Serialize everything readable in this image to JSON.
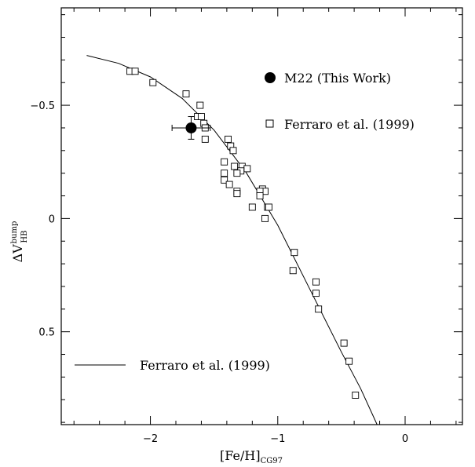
{
  "chart_data": {
    "type": "scatter",
    "xlabel": {
      "main": "[Fe/H]",
      "sub": "CG97"
    },
    "ylabel": {
      "main": "ΔV",
      "sup": "bump",
      "sub": "HB"
    },
    "xlim": [
      -2.7,
      0.45
    ],
    "ylim": [
      0.91,
      -0.93
    ],
    "y_inverted": true,
    "x_ticks": [
      -2,
      -1,
      0
    ],
    "x_tick_labels": [
      "−2",
      "−1",
      "0"
    ],
    "y_ticks": [
      -0.5,
      0,
      0.5
    ],
    "y_tick_labels": [
      "−0.5",
      "0",
      "0.5"
    ],
    "grid": false,
    "legend_placement": "top-right and bottom-left",
    "series": [
      {
        "name": "Ferraro et al. (1999)",
        "kind": "open-square",
        "points": [
          {
            "x": -2.16,
            "y": -0.65
          },
          {
            "x": -2.12,
            "y": -0.65
          },
          {
            "x": -1.98,
            "y": -0.6
          },
          {
            "x": -1.72,
            "y": -0.55
          },
          {
            "x": -1.61,
            "y": -0.5
          },
          {
            "x": -1.63,
            "y": -0.45
          },
          {
            "x": -1.6,
            "y": -0.45
          },
          {
            "x": -1.58,
            "y": -0.42
          },
          {
            "x": -1.57,
            "y": -0.4
          },
          {
            "x": -1.57,
            "y": -0.35
          },
          {
            "x": -1.39,
            "y": -0.35
          },
          {
            "x": -1.37,
            "y": -0.32
          },
          {
            "x": -1.35,
            "y": -0.3
          },
          {
            "x": -1.42,
            "y": -0.25
          },
          {
            "x": -1.34,
            "y": -0.23
          },
          {
            "x": -1.28,
            "y": -0.23
          },
          {
            "x": -1.24,
            "y": -0.22
          },
          {
            "x": -1.29,
            "y": -0.21
          },
          {
            "x": -1.32,
            "y": -0.2
          },
          {
            "x": -1.42,
            "y": -0.2
          },
          {
            "x": -1.42,
            "y": -0.17
          },
          {
            "x": -1.38,
            "y": -0.15
          },
          {
            "x": -1.32,
            "y": -0.12
          },
          {
            "x": -1.32,
            "y": -0.11
          },
          {
            "x": -1.12,
            "y": -0.13
          },
          {
            "x": -1.1,
            "y": -0.12
          },
          {
            "x": -1.14,
            "y": -0.12
          },
          {
            "x": -1.14,
            "y": -0.1
          },
          {
            "x": -1.2,
            "y": -0.05
          },
          {
            "x": -1.08,
            "y": -0.05
          },
          {
            "x": -1.07,
            "y": -0.05
          },
          {
            "x": -1.1,
            "y": 0.0
          },
          {
            "x": -0.87,
            "y": 0.15
          },
          {
            "x": -0.88,
            "y": 0.23
          },
          {
            "x": -0.7,
            "y": 0.28
          },
          {
            "x": -0.7,
            "y": 0.33
          },
          {
            "x": -0.68,
            "y": 0.4
          },
          {
            "x": -0.48,
            "y": 0.55
          },
          {
            "x": -0.44,
            "y": 0.63
          },
          {
            "x": -0.39,
            "y": 0.78
          }
        ]
      },
      {
        "name": "M22 (This Work)",
        "kind": "filled-circle",
        "points": [
          {
            "x": -1.68,
            "y": -0.4,
            "xerr": 0.15,
            "yerr": 0.05
          }
        ]
      }
    ],
    "fit_line": {
      "name": "Ferraro et al. (1999)",
      "points": [
        {
          "x": -2.5,
          "y": -0.72
        },
        {
          "x": -2.25,
          "y": -0.685
        },
        {
          "x": -2.0,
          "y": -0.625
        },
        {
          "x": -1.75,
          "y": -0.53
        },
        {
          "x": -1.5,
          "y": -0.39
        },
        {
          "x": -1.25,
          "y": -0.205
        },
        {
          "x": -1.0,
          "y": 0.03
        },
        {
          "x": -0.75,
          "y": 0.31
        },
        {
          "x": -0.5,
          "y": 0.59
        },
        {
          "x": -0.35,
          "y": 0.75
        },
        {
          "x": -0.22,
          "y": 0.91
        }
      ]
    },
    "legend": [
      {
        "kind": "filled-circle",
        "label": "M22 (This Work)"
      },
      {
        "kind": "open-square",
        "label": "Ferraro et al. (1999)"
      },
      {
        "kind": "line",
        "label": "Ferraro et al. (1999)"
      }
    ]
  }
}
